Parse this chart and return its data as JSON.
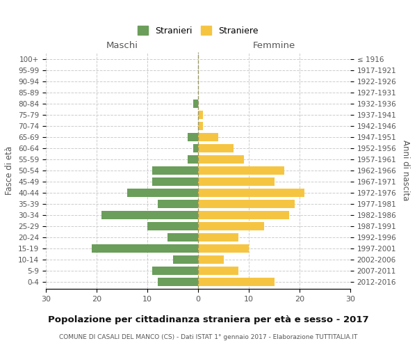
{
  "age_groups": [
    "100+",
    "95-99",
    "90-94",
    "85-89",
    "80-84",
    "75-79",
    "70-74",
    "65-69",
    "60-64",
    "55-59",
    "50-54",
    "45-49",
    "40-44",
    "35-39",
    "30-34",
    "25-29",
    "20-24",
    "15-19",
    "10-14",
    "5-9",
    "0-4"
  ],
  "birth_years": [
    "≤ 1916",
    "1917-1921",
    "1922-1926",
    "1927-1931",
    "1932-1936",
    "1937-1941",
    "1942-1946",
    "1947-1951",
    "1952-1956",
    "1957-1961",
    "1962-1966",
    "1967-1971",
    "1972-1976",
    "1977-1981",
    "1982-1986",
    "1987-1991",
    "1992-1996",
    "1997-2001",
    "2002-2006",
    "2007-2011",
    "2012-2016"
  ],
  "males": [
    0,
    0,
    0,
    0,
    1,
    0,
    0,
    2,
    1,
    2,
    9,
    9,
    14,
    8,
    19,
    10,
    6,
    21,
    5,
    9,
    8
  ],
  "females": [
    0,
    0,
    0,
    0,
    0,
    1,
    1,
    4,
    7,
    9,
    17,
    15,
    21,
    19,
    18,
    13,
    8,
    10,
    5,
    8,
    15
  ],
  "male_color": "#6a9e5a",
  "female_color": "#f5c542",
  "title": "Popolazione per cittadinanza straniera per età e sesso - 2017",
  "subtitle": "COMUNE DI CASALI DEL MANCO (CS) - Dati ISTAT 1° gennaio 2017 - Elaborazione TUTTITALIA.IT",
  "ylabel_left": "Fasce di età",
  "ylabel_right": "Anni di nascita",
  "xlabel_left": "Maschi",
  "xlabel_right": "Femmine",
  "legend_male": "Stranieri",
  "legend_female": "Straniere",
  "xlim": 30,
  "background_color": "#ffffff",
  "grid_color": "#cccccc"
}
